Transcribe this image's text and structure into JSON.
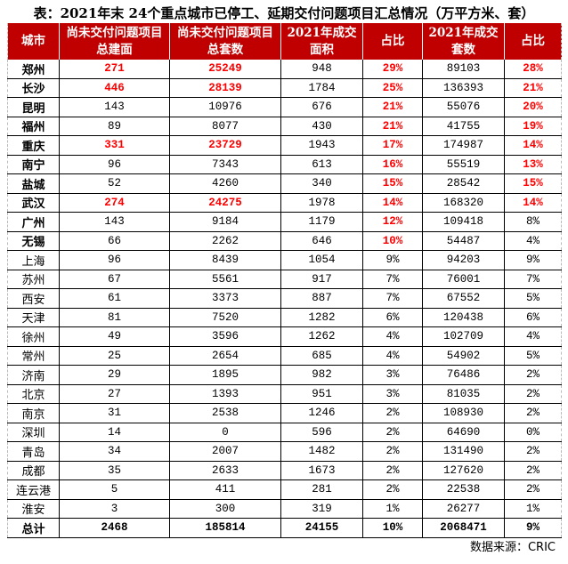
{
  "title": "表：2021年末 24个重点城市已停工、延期交付问题项目汇总情况（万平方米、套）",
  "headers": [
    "城市",
    "尚未交付问题项目\n总建面",
    "尚未交付问题项目\n总套数",
    "2021年成交\n面积",
    "占比",
    "2021年成交\n套数",
    "占比"
  ],
  "colors": {
    "header_bg": "#c00000",
    "highlight": "#ff0000"
  },
  "rows": [
    {
      "cells": [
        "郑州",
        "271",
        "25249",
        "948",
        "29%",
        "89103",
        "28%"
      ],
      "bold_city": true,
      "red": [
        1,
        2,
        4,
        6
      ]
    },
    {
      "cells": [
        "长沙",
        "446",
        "28139",
        "1784",
        "25%",
        "136393",
        "21%"
      ],
      "bold_city": true,
      "red": [
        1,
        2,
        4,
        6
      ]
    },
    {
      "cells": [
        "昆明",
        "143",
        "10976",
        "676",
        "21%",
        "55076",
        "20%"
      ],
      "bold_city": true,
      "red": [
        4,
        6
      ]
    },
    {
      "cells": [
        "福州",
        "89",
        "8077",
        "430",
        "21%",
        "41755",
        "19%"
      ],
      "bold_city": true,
      "red": [
        4,
        6
      ]
    },
    {
      "cells": [
        "重庆",
        "331",
        "23729",
        "1943",
        "17%",
        "174987",
        "14%"
      ],
      "bold_city": true,
      "red": [
        1,
        2,
        4,
        6
      ]
    },
    {
      "cells": [
        "南宁",
        "96",
        "7343",
        "613",
        "16%",
        "55519",
        "13%"
      ],
      "bold_city": true,
      "red": [
        4,
        6
      ]
    },
    {
      "cells": [
        "盐城",
        "52",
        "4260",
        "340",
        "15%",
        "28542",
        "15%"
      ],
      "bold_city": true,
      "red": [
        4,
        6
      ]
    },
    {
      "cells": [
        "武汉",
        "274",
        "24275",
        "1978",
        "14%",
        "168320",
        "14%"
      ],
      "bold_city": true,
      "red": [
        1,
        2,
        4,
        6
      ]
    },
    {
      "cells": [
        "广州",
        "143",
        "9184",
        "1179",
        "12%",
        "109418",
        "8%"
      ],
      "bold_city": true,
      "red": [
        4
      ]
    },
    {
      "cells": [
        "无锡",
        "66",
        "2262",
        "646",
        "10%",
        "54487",
        "4%"
      ],
      "bold_city": true,
      "red": [
        4
      ]
    },
    {
      "cells": [
        "上海",
        "96",
        "8439",
        "1054",
        "9%",
        "94203",
        "9%"
      ],
      "bold_city": false,
      "red": []
    },
    {
      "cells": [
        "苏州",
        "67",
        "5561",
        "917",
        "7%",
        "76001",
        "7%"
      ],
      "bold_city": false,
      "red": []
    },
    {
      "cells": [
        "西安",
        "61",
        "3373",
        "887",
        "7%",
        "67552",
        "5%"
      ],
      "bold_city": false,
      "red": []
    },
    {
      "cells": [
        "天津",
        "81",
        "7520",
        "1282",
        "6%",
        "120438",
        "6%"
      ],
      "bold_city": false,
      "red": []
    },
    {
      "cells": [
        "徐州",
        "49",
        "3596",
        "1262",
        "4%",
        "102709",
        "4%"
      ],
      "bold_city": false,
      "red": []
    },
    {
      "cells": [
        "常州",
        "25",
        "2654",
        "685",
        "4%",
        "54902",
        "5%"
      ],
      "bold_city": false,
      "red": []
    },
    {
      "cells": [
        "济南",
        "29",
        "1895",
        "982",
        "3%",
        "76486",
        "2%"
      ],
      "bold_city": false,
      "red": []
    },
    {
      "cells": [
        "北京",
        "27",
        "1393",
        "951",
        "3%",
        "81035",
        "2%"
      ],
      "bold_city": false,
      "red": []
    },
    {
      "cells": [
        "南京",
        "31",
        "2538",
        "1246",
        "2%",
        "108930",
        "2%"
      ],
      "bold_city": false,
      "red": []
    },
    {
      "cells": [
        "深圳",
        "14",
        "0",
        "596",
        "2%",
        "64690",
        "0%"
      ],
      "bold_city": false,
      "red": []
    },
    {
      "cells": [
        "青岛",
        "34",
        "2007",
        "1482",
        "2%",
        "131490",
        "2%"
      ],
      "bold_city": false,
      "red": []
    },
    {
      "cells": [
        "成都",
        "35",
        "2633",
        "1673",
        "2%",
        "127620",
        "2%"
      ],
      "bold_city": false,
      "red": []
    },
    {
      "cells": [
        "连云港",
        "5",
        "411",
        "281",
        "2%",
        "22538",
        "2%"
      ],
      "bold_city": false,
      "red": []
    },
    {
      "cells": [
        "淮安",
        "3",
        "300",
        "319",
        "1%",
        "26277",
        "1%"
      ],
      "bold_city": false,
      "red": []
    }
  ],
  "total": [
    "总计",
    "2468",
    "185814",
    "24155",
    "10%",
    "2068471",
    "9%"
  ],
  "source": "数据来源：CRIC"
}
